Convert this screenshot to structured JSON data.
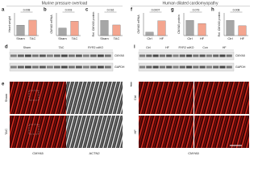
{
  "headings": [
    "Murine pressure overload",
    "Human dilated cardiomyopathy"
  ],
  "bar_panels": [
    {
      "letter": "a",
      "ylabel": "Heart weight",
      "p": "0.008",
      "categories": [
        "Sham",
        "TAC"
      ],
      "values": [
        4.6,
        6.8
      ],
      "colors": [
        "#a6a6a6",
        "#f4a58f"
      ],
      "ylim": [
        0,
        10
      ]
    },
    {
      "letter": "b",
      "ylabel": "CMYA5 mRNA",
      "p": "0.003",
      "categories": [
        "Sham",
        "TAC"
      ],
      "values": [
        1,
        1.9
      ],
      "colors": [
        "#a6a6a6",
        "#f4a58f"
      ],
      "ylim": [
        0,
        3
      ]
    },
    {
      "letter": "c",
      "ylabel": "Rel. CMYA5 protein",
      "p": "0.016",
      "categories": [
        "Sham",
        "TAC"
      ],
      "values": [
        1,
        0.7
      ],
      "colors": [
        "#a6a6a6",
        "#f4a58f"
      ],
      "ylim": [
        0,
        1.5
      ]
    },
    {
      "letter": "f",
      "ylabel": "CMYA5 mRNA",
      "p": "0.0007",
      "categories": [
        "Ctrl",
        "HF"
      ],
      "values": [
        0.3,
        1.3
      ],
      "colors": [
        "#a6a6a6",
        "#f4a58f"
      ],
      "ylim": [
        0,
        2
      ]
    },
    {
      "letter": "g",
      "ylabel": "CMYA5 protein",
      "p": "0.079",
      "categories": [
        "Ctrl",
        "HF"
      ],
      "values": [
        1,
        0.8
      ],
      "colors": [
        "#a6a6a6",
        "#f4a58f"
      ],
      "ylim": [
        0,
        1.5
      ]
    },
    {
      "letter": "h",
      "ylabel": "Rel. CMYA5 protein",
      "p": "0.008",
      "categories": [
        "Ctrl",
        "HF"
      ],
      "values": [
        1,
        0.65
      ],
      "colors": [
        "#a6a6a6",
        "#f4a58f"
      ],
      "ylim": [
        0,
        1.5
      ]
    }
  ],
  "blot_d": {
    "letter": "d",
    "lanes": [
      "Sham",
      "TAC",
      "RYR2 cdKO"
    ],
    "bands": [
      "CMYA5",
      "GAPDH"
    ]
  },
  "blot_i": {
    "letter": "i",
    "lanes": [
      "Ctrl",
      "HF",
      "RYR2 cdKO",
      "Con",
      "HF"
    ],
    "bands": [
      "CMYA5",
      "GAPDH"
    ]
  },
  "image_e": {
    "letter": "e",
    "rows": [
      "Sham",
      "TAC"
    ],
    "columns": [
      "CMYA5",
      "ACTN2"
    ]
  },
  "image_j": {
    "letter": "j",
    "rows": [
      "Ctrl",
      "HF"
    ],
    "columns": [
      "CMYA5"
    ]
  }
}
